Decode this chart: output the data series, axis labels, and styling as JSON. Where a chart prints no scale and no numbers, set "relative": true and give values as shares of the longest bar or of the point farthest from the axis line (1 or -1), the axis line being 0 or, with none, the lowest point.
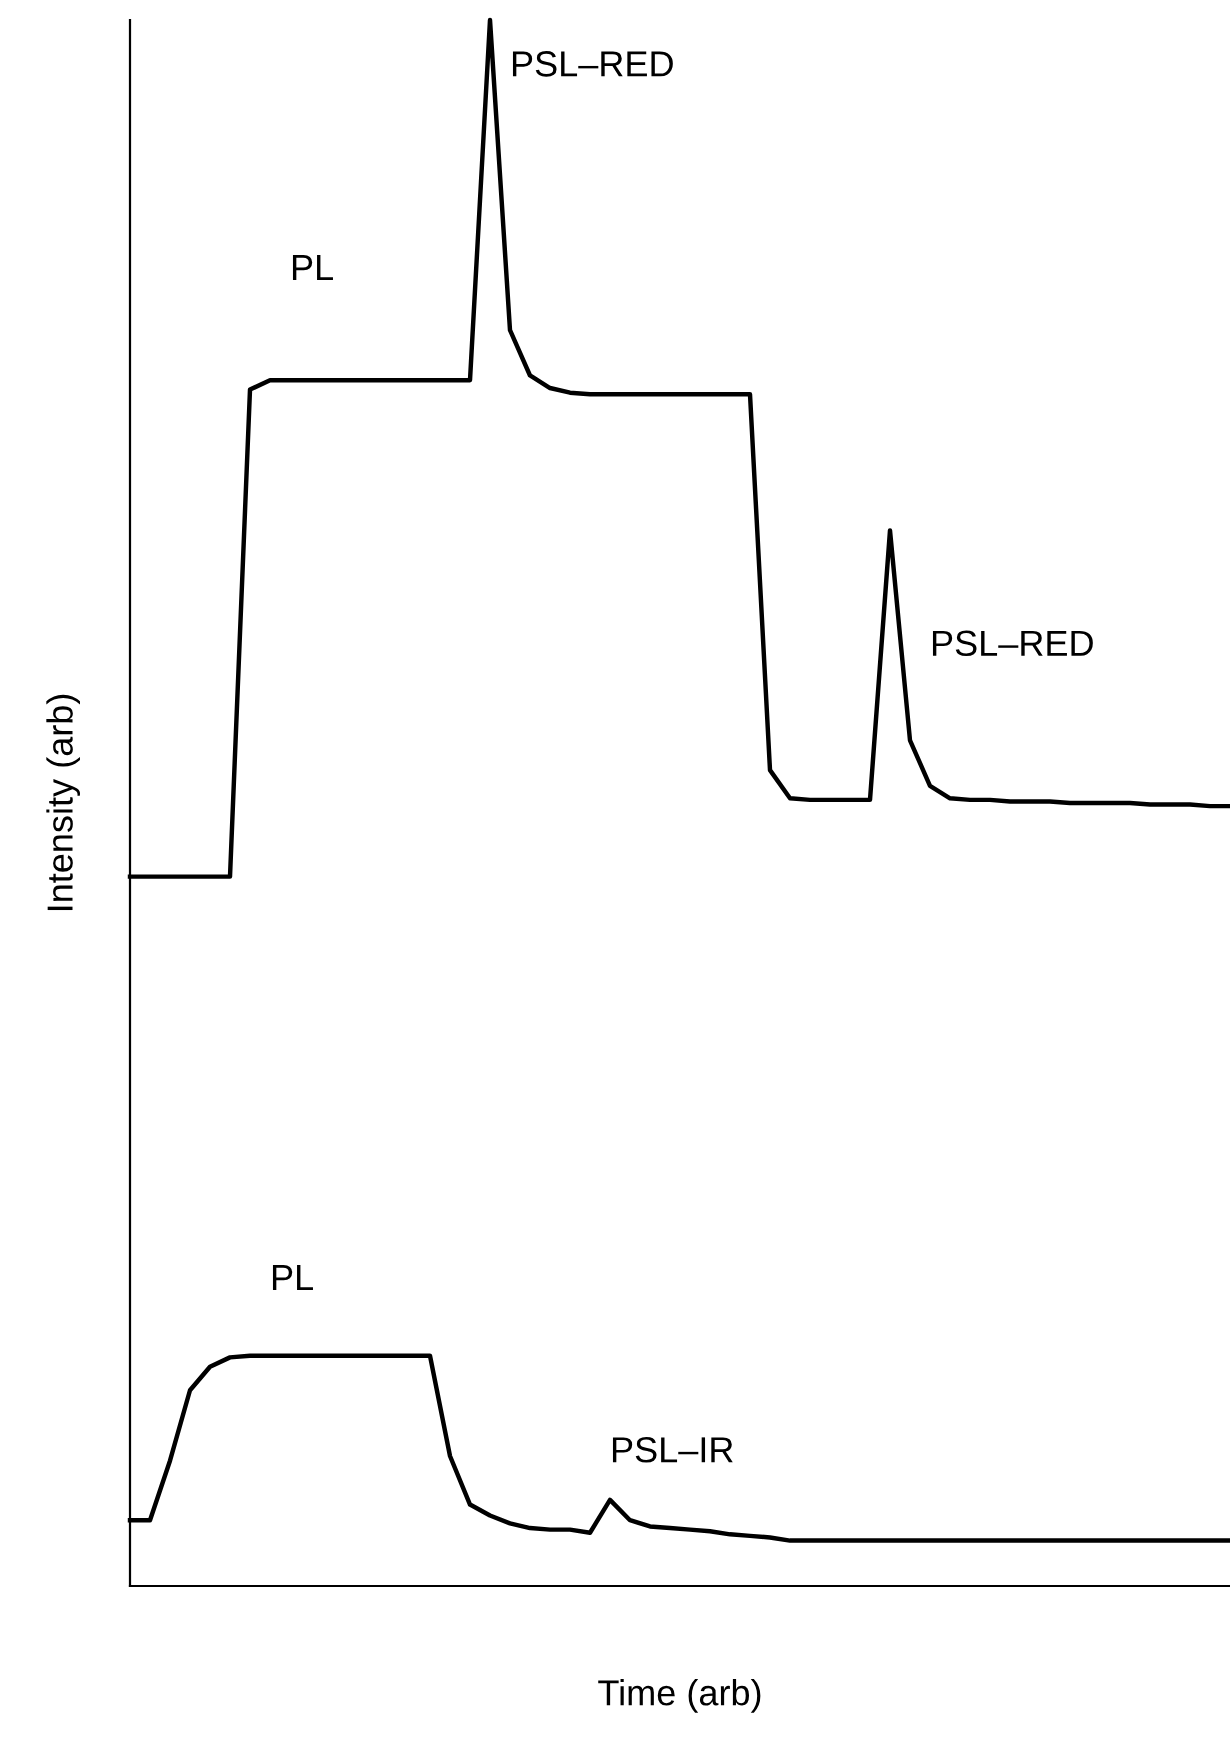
{
  "chart_data": {
    "type": "line",
    "relative": true,
    "xlabel": "Time (arb)",
    "ylabel": "Intensity (arb)",
    "categories": [
      null,
      null,
      null,
      null,
      null,
      null,
      null,
      null,
      null,
      null,
      null,
      null,
      null,
      null,
      null,
      null,
      null,
      null,
      null,
      null,
      null,
      null,
      null,
      null,
      null,
      null,
      null,
      null,
      null,
      null,
      null,
      null,
      null,
      null,
      null,
      null,
      null,
      null,
      null,
      null,
      null,
      null,
      null,
      null,
      null,
      null,
      null,
      null,
      null,
      null,
      null,
      null,
      null,
      null,
      null,
      null
    ],
    "series": [
      {
        "color": "#000000",
        "values": [
          0.453,
          0.453,
          0.453,
          0.453,
          0.453,
          0.453,
          0.764,
          0.77,
          0.77,
          0.77,
          0.77,
          0.77,
          0.77,
          0.77,
          0.77,
          0.77,
          0.77,
          0.77,
          1,
          0.802,
          0.773,
          0.765,
          0.762,
          0.761,
          0.761,
          0.761,
          0.761,
          0.761,
          0.761,
          0.761,
          0.761,
          0.761,
          0.521,
          0.503,
          0.502,
          0.502,
          0.502,
          0.502,
          0.674,
          0.54,
          0.511,
          0.503,
          0.502,
          0.502,
          0.501,
          0.501,
          0.501,
          0.5,
          0.5,
          0.5,
          0.5,
          0.499,
          0.499,
          0.499,
          0.498,
          0.498
        ]
      },
      {
        "color": "#000000",
        "values": [
          0.042,
          0.042,
          0.08,
          0.125,
          0.14,
          0.146,
          0.147,
          0.147,
          0.147,
          0.147,
          0.147,
          0.147,
          0.147,
          0.147,
          0.147,
          0.147,
          0.083,
          0.052,
          0.045,
          0.04,
          0.037,
          0.036,
          0.036,
          0.034,
          0.055,
          0.042,
          0.038,
          0.037,
          0.036,
          0.035,
          0.033,
          0.032,
          0.031,
          0.029,
          0.029,
          0.029,
          0.029,
          0.029,
          0.029,
          0.029,
          0.029,
          0.029,
          0.029,
          0.029,
          0.029,
          0.029,
          0.029,
          0.029,
          0.029,
          0.029,
          0.029,
          0.029,
          0.029,
          0.029,
          0.029,
          0.029
        ]
      }
    ],
    "annotations": [
      "PL",
      "PSL–RED",
      "PSL–RED",
      "PL",
      "PSL–IR"
    ],
    "grid": false,
    "legend": false,
    "marker": "none",
    "line_style": "solid"
  }
}
